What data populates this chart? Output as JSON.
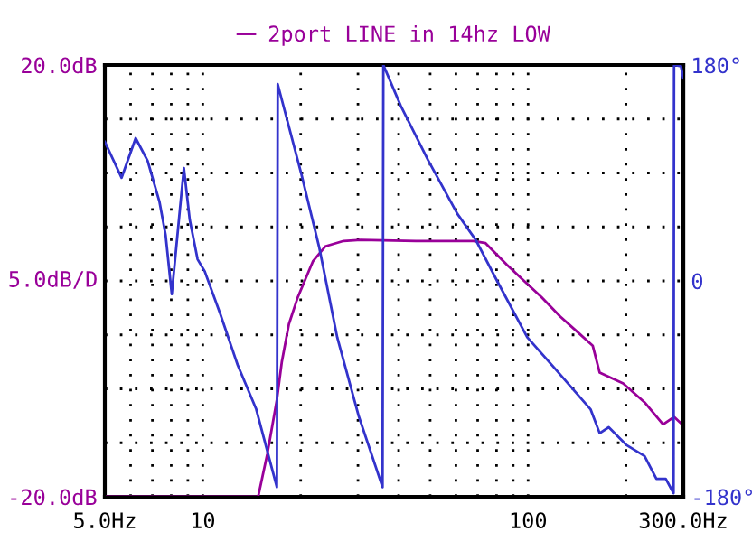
{
  "chart_data": {
    "type": "line",
    "legend": "top",
    "ylabel": "5.0dB/D",
    "log": "x",
    "grid": true,
    "line_style": "solid",
    "marker": "none",
    "xlim": [
      5,
      300
    ],
    "xticks": [
      {
        "value": 5,
        "label": "5.0Hz"
      },
      {
        "value": 6,
        "label": null
      },
      {
        "value": 7,
        "label": null
      },
      {
        "value": 8,
        "label": null
      },
      {
        "value": 9,
        "label": null
      },
      10,
      {
        "value": 20,
        "label": null
      },
      {
        "value": 30,
        "label": null
      },
      {
        "value": 40,
        "label": null
      },
      {
        "value": 50,
        "label": null
      },
      {
        "value": 60,
        "label": null
      },
      {
        "value": 70,
        "label": null
      },
      {
        "value": 80,
        "label": null
      },
      {
        "value": 90,
        "label": null
      },
      100,
      {
        "value": 200,
        "label": null
      },
      {
        "value": 300,
        "label": "300.0Hz"
      }
    ],
    "ylim": [
      -20,
      20
    ],
    "yticks": [
      {
        "value": -20,
        "label": "-20.0dB"
      },
      {
        "value": -15,
        "label": null
      },
      {
        "value": -10,
        "label": null
      },
      {
        "value": -5,
        "label": null
      },
      {
        "value": 0,
        "label": null
      },
      {
        "value": 5,
        "label": null
      },
      {
        "value": 10,
        "label": null
      },
      {
        "value": 15,
        "label": null
      },
      {
        "value": 20,
        "label": "20.0dB"
      }
    ],
    "y2lim": [
      -180,
      180
    ],
    "y2ticks": [
      {
        "value": -180,
        "label": "-180°"
      },
      0,
      {
        "value": 180,
        "label": "180°"
      }
    ],
    "series": [
      {
        "name": "2port LINE in 14hz LOW",
        "color": "#990099",
        "x": [
          5,
          14.8,
          15.8,
          16.9,
          17.5,
          18.4,
          19.6,
          21.8,
          23.8,
          27.1,
          30.6,
          45.2,
          67.9,
          74,
          86,
          97.2,
          110,
          125.6,
          142.7,
          158,
          166,
          196,
          229,
          260,
          281,
          300
        ],
        "values": [
          -20,
          -20,
          -16,
          -11,
          -7.5,
          -4,
          -1.5,
          1.8,
          3.2,
          3.7,
          3.8,
          3.7,
          3.7,
          3.5,
          1.5,
          0,
          -1.5,
          -3.3,
          -4.8,
          -6,
          -8.5,
          -9.5,
          -11.3,
          -13.3,
          -12.6,
          -13.4
        ]
      },
      {
        "color": "#3333cc",
        "axis": "y2",
        "x": [
          5,
          5.63,
          6.22,
          6.77,
          7.36,
          7.69,
          8.03,
          8.75,
          9.12,
          9.64,
          10.14,
          11.3,
          12.8,
          14.6,
          16.9,
          17.0,
          20.1,
          22.8,
          25.9,
          30.1,
          35.7,
          35.9,
          40.6,
          49.2,
          60.6,
          69.1,
          80.3,
          99.4,
          120,
          155.6,
          166,
          177,
          201,
          228,
          248,
          265,
          280,
          281,
          295,
          300
        ],
        "values": [
          116,
          86,
          119,
          100,
          66,
          38,
          -11,
          94,
          51,
          18,
          8,
          -27,
          -70,
          -107,
          -172,
          164,
          89,
          28,
          -47,
          -112,
          -172,
          180,
          146,
          101,
          56,
          34,
          0,
          -47,
          -72,
          -107,
          -127,
          -122,
          -137,
          -146,
          -165,
          -165,
          -177,
          180,
          179,
          169
        ]
      }
    ]
  }
}
